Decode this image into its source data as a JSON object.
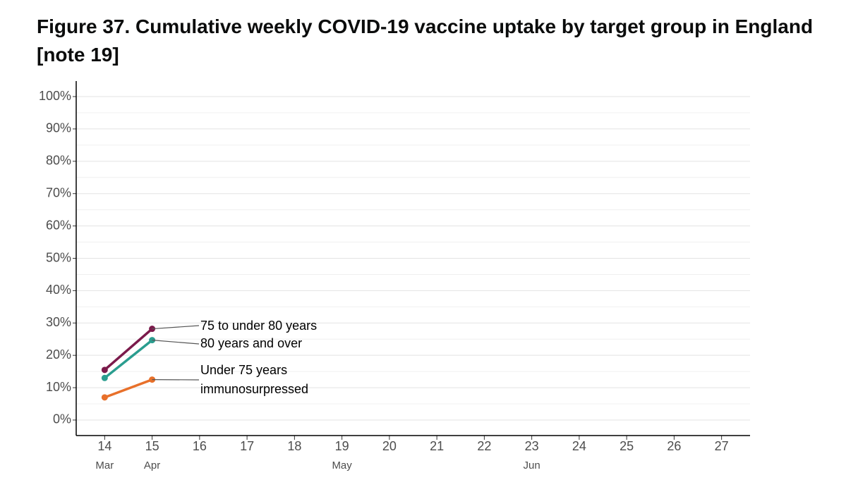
{
  "chart_data": {
    "type": "line",
    "title": "Figure 37. Cumulative weekly COVID-19 vaccine uptake by target group in England [note 19]",
    "x": [
      14,
      15
    ],
    "xlim": [
      13.4,
      27.6
    ],
    "xticks": [
      14,
      15,
      16,
      17,
      18,
      19,
      20,
      21,
      22,
      23,
      24,
      25,
      26,
      27
    ],
    "month_labels": [
      {
        "value": 14,
        "label": "Mar"
      },
      {
        "value": 15,
        "label": "Apr"
      },
      {
        "value": 19,
        "label": "May"
      },
      {
        "value": 23,
        "label": "Jun"
      }
    ],
    "ylim": [
      -4.8,
      104.8
    ],
    "yticks": [
      {
        "value": 0,
        "label": "0%"
      },
      {
        "value": 10,
        "label": "10%"
      },
      {
        "value": 20,
        "label": "20%"
      },
      {
        "value": 30,
        "label": "30%"
      },
      {
        "value": 40,
        "label": "40%"
      },
      {
        "value": 50,
        "label": "50%"
      },
      {
        "value": 60,
        "label": "60%"
      },
      {
        "value": 70,
        "label": "70%"
      },
      {
        "value": 80,
        "label": "80%"
      },
      {
        "value": 90,
        "label": "90%"
      },
      {
        "value": 100,
        "label": "100%"
      }
    ],
    "grid": true,
    "series": [
      {
        "name": "75 to under 80 years",
        "color": "#7b1a4b",
        "values": [
          15.5,
          28.2
        ]
      },
      {
        "name": "80 years and over",
        "color": "#2a9d8f",
        "values": [
          13.0,
          24.7
        ]
      },
      {
        "name": "Under 75 years\nimmunosurpressed",
        "color": "#e8702a",
        "values": [
          7.0,
          12.5
        ]
      }
    ]
  }
}
